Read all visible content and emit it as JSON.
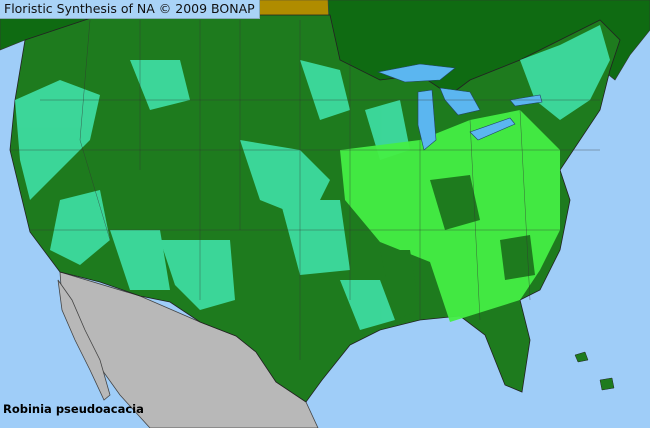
{
  "title": "Floristic Synthesis of NA © 2009 BONAP",
  "species": "Robinia pseudoacacia",
  "colors": {
    "ocean": "#9fcdf8",
    "present_native": "#44ee44",
    "present_not_rare": "#1e7b1e",
    "present_exotic": "#3fe0a6",
    "no_data_province": "#b08c00",
    "canada": "#0f6b12",
    "mexico": "#b8b8b8",
    "lakes": "#5bb6f0"
  }
}
